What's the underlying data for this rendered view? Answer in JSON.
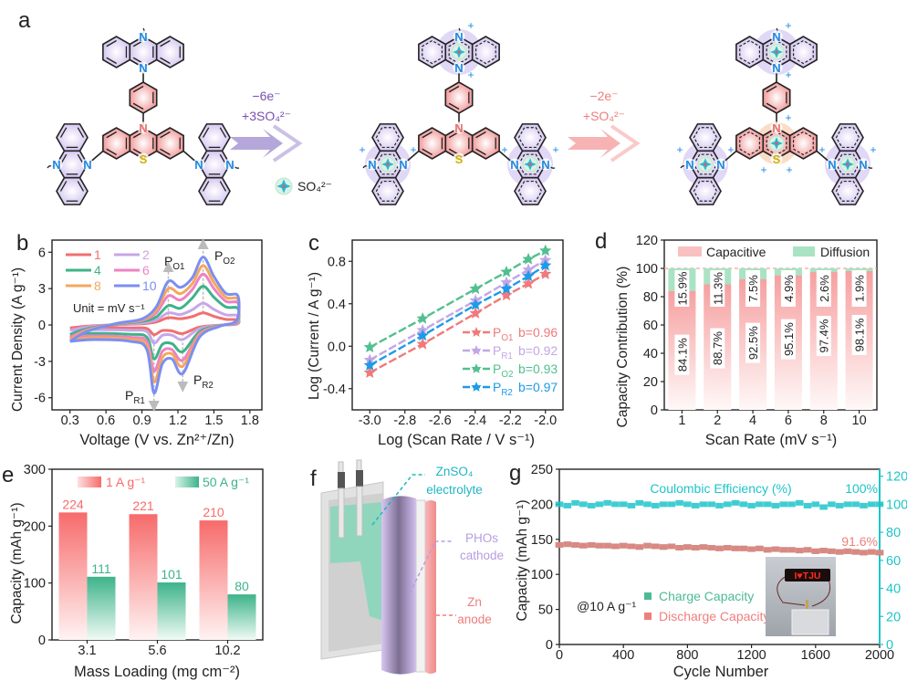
{
  "panel_labels": {
    "a": "a",
    "b": "b",
    "c": "c",
    "d": "d",
    "e": "e",
    "f": "f",
    "g": "g"
  },
  "scheme": {
    "step1": {
      "electrons": "−6e⁻",
      "anions": "+3SO₄²⁻",
      "color": "#7b4fae"
    },
    "step2": {
      "electrons": "−2e⁻",
      "anions": "+SO₄²⁻",
      "color": "#f07c7c"
    },
    "legend_label": "SO₄²⁻",
    "atoms": {
      "N": "N",
      "S": "S",
      "plus": "+"
    },
    "colors": {
      "phenazine": "#d4c8f0",
      "phenothiazine": "#f29a9a",
      "nitrogen": "#1e88e5",
      "sulfur": "#d2ae00",
      "anion": "#29b6d6"
    }
  },
  "device": {
    "electrolyte": [
      "ZnSO₄",
      "electrolyte"
    ],
    "cathode": [
      "PHOs",
      "cathode"
    ],
    "anode": [
      "Zn",
      "anode"
    ],
    "colors": {
      "electrolyte": "#1fb5c4",
      "cathode": "#b79ee0",
      "anode": "#f07c7c"
    }
  },
  "chart_data": [
    {
      "panel": "b",
      "type": "line",
      "xlabel": "Voltage (V vs. Zn²⁺/Zn)",
      "ylabel": "Current Density (A g⁻¹)",
      "xlim": [
        0.15,
        1.9
      ],
      "ylim": [
        -7,
        7
      ],
      "xticks": [
        "0.3",
        "0.6",
        "0.9",
        "1.2",
        "1.5",
        "1.8"
      ],
      "yticks": [
        "-6",
        "-3",
        "0",
        "3",
        "6"
      ],
      "annotation": "Unit = mV s⁻¹",
      "peaks": [
        {
          "main": "P",
          "sub": "O1",
          "voltage": 1.12
        },
        {
          "main": "P",
          "sub": "O2",
          "voltage": 1.41
        },
        {
          "main": "P",
          "sub": "R1",
          "voltage": 1.0
        },
        {
          "main": "P",
          "sub": "R2",
          "voltage": 1.24
        }
      ],
      "series": [
        {
          "name": "1",
          "color": "#f07070",
          "PO1": 0.6,
          "PO2": 1.0,
          "PR1": -0.8,
          "PR2": -0.7
        },
        {
          "name": "2",
          "color": "#c7a6e8",
          "PO1": 1.0,
          "PO2": 1.8,
          "PR1": -1.5,
          "PR2": -1.2
        },
        {
          "name": "4",
          "color": "#3db388",
          "PO1": 1.6,
          "PO2": 3.2,
          "PR1": -2.8,
          "PR2": -2.2
        },
        {
          "name": "6",
          "color": "#ee82c4",
          "PO1": 2.4,
          "PO2": 4.2,
          "PR1": -3.8,
          "PR2": -2.9
        },
        {
          "name": "8",
          "color": "#f5a75c",
          "PO1": 3.0,
          "PO2": 4.9,
          "PR1": -4.7,
          "PR2": -3.4
        },
        {
          "name": "10",
          "color": "#7b8ef2",
          "PO1": 3.6,
          "PO2": 5.6,
          "PR1": -5.6,
          "PR2": -4.0
        }
      ]
    },
    {
      "panel": "c",
      "type": "line",
      "xlabel": "Log (Scan Rate / V s⁻¹)",
      "ylabel": "Log (Current / A g⁻¹)",
      "xlim": [
        -3.1,
        -1.9
      ],
      "ylim": [
        -0.6,
        1.0
      ],
      "xticks": [
        "-3.0",
        "-2.8",
        "-2.6",
        "-2.4",
        "-2.2",
        "-2.0"
      ],
      "yticks": [
        "-0.4",
        "0.0",
        "0.4",
        "0.8"
      ],
      "x": [
        -3.0,
        -2.699,
        -2.398,
        -2.222,
        -2.097,
        -2.0
      ],
      "series": [
        {
          "main": "P",
          "sub": "O1",
          "b": "b=0.96",
          "color": "#f07a7a",
          "y": [
            -0.25,
            0.02,
            0.31,
            0.48,
            0.59,
            0.68
          ]
        },
        {
          "main": "P",
          "sub": "R1",
          "b": "b=0.92",
          "color": "#c3a6e6",
          "y": [
            -0.13,
            0.15,
            0.43,
            0.6,
            0.72,
            0.81
          ]
        },
        {
          "main": "P",
          "sub": "O2",
          "b": "b=0.93",
          "color": "#52bf8f",
          "y": [
            -0.01,
            0.26,
            0.54,
            0.7,
            0.82,
            0.9
          ]
        },
        {
          "main": "P",
          "sub": "R2",
          "b": "b=0.97",
          "color": "#1e9ae8",
          "y": [
            -0.18,
            0.1,
            0.39,
            0.54,
            0.66,
            0.76
          ]
        }
      ],
      "legend": "bottom-right"
    },
    {
      "panel": "d",
      "type": "bar",
      "xlabel": "Scan Rate (mV s⁻¹)",
      "ylabel": "Capacity Contribution (%)",
      "ylim": [
        0,
        120
      ],
      "yticks": [
        "0",
        "20",
        "40",
        "60",
        "80",
        "100",
        "120"
      ],
      "categories": [
        "1",
        "2",
        "4",
        "6",
        "8",
        "10"
      ],
      "series": [
        {
          "name": "Capacitive",
          "color": "#f6a0a0",
          "values": [
            84.1,
            88.7,
            92.5,
            95.1,
            97.4,
            98.1
          ],
          "labels": [
            "84.1%",
            "88.7%",
            "92.5%",
            "95.1%",
            "97.4%",
            "98.1%"
          ]
        },
        {
          "name": "Diffusion",
          "color": "#a9e3c3",
          "values": [
            15.9,
            11.3,
            7.5,
            4.9,
            2.6,
            1.9
          ],
          "labels": [
            "15.9%",
            "11.3%",
            "7.5%",
            "4.9%",
            "2.6%",
            "1.9%"
          ]
        }
      ],
      "stacked": true,
      "legend": "top"
    },
    {
      "panel": "e",
      "type": "bar",
      "xlabel": "Mass Loading (mg cm⁻²)",
      "ylabel": "Capacity (mAh g⁻¹)",
      "ylim": [
        0,
        300
      ],
      "yticks": [
        "0",
        "100",
        "200",
        "300"
      ],
      "categories": [
        "3.1",
        "5.6",
        "10.2"
      ],
      "series": [
        {
          "name": "1 A g⁻¹",
          "color": "#f76b6b",
          "values": [
            224,
            221,
            210
          ],
          "labels": [
            "224",
            "221",
            "210"
          ]
        },
        {
          "name": "50 A g⁻¹",
          "color": "#3db38a",
          "values": [
            111,
            101,
            80
          ],
          "labels": [
            "111",
            "101",
            "80"
          ]
        }
      ],
      "legend": "top"
    },
    {
      "panel": "g",
      "type": "scatter",
      "xlabel": "Cycle Number",
      "ylabel": "Capacity (mAh g⁻¹)",
      "xlim": [
        0,
        2000
      ],
      "ylim": [
        0,
        250
      ],
      "y2lim": [
        0,
        125
      ],
      "xticks": [
        "0",
        "400",
        "800",
        "1200",
        "1600",
        "2000"
      ],
      "yticks": [
        "0",
        "50",
        "100",
        "150",
        "200",
        "250"
      ],
      "y2ticks": [
        "0",
        "20",
        "40",
        "60",
        "80",
        "100",
        "120"
      ],
      "y2color": "#1fc4c9",
      "x": [
        0,
        50,
        100,
        150,
        200,
        250,
        300,
        350,
        400,
        450,
        500,
        550,
        600,
        650,
        700,
        750,
        800,
        850,
        900,
        950,
        1000,
        1050,
        1100,
        1150,
        1200,
        1250,
        1300,
        1350,
        1400,
        1450,
        1500,
        1550,
        1600,
        1650,
        1700,
        1750,
        1800,
        1850,
        1900,
        1950,
        2000
      ],
      "series": [
        {
          "name": "Charge Capacity",
          "color": "#4dba93",
          "axis": "left",
          "y": [
            142,
            143,
            142,
            141,
            142,
            141,
            141,
            140,
            141,
            140,
            139,
            141,
            140,
            139,
            140,
            138,
            139,
            138,
            139,
            138,
            137,
            138,
            137,
            137,
            136,
            137,
            135,
            136,
            135,
            135,
            134,
            135,
            133,
            134,
            133,
            132,
            133,
            132,
            131,
            132,
            131
          ]
        },
        {
          "name": "Discharge Capacity",
          "color": "#f07e7e",
          "axis": "left",
          "y": [
            142,
            143,
            142,
            141,
            142,
            141,
            141,
            140,
            141,
            140,
            139,
            141,
            140,
            139,
            140,
            138,
            139,
            138,
            139,
            138,
            137,
            138,
            137,
            137,
            136,
            137,
            135,
            136,
            135,
            135,
            134,
            135,
            133,
            134,
            133,
            132,
            133,
            132,
            131,
            132,
            131
          ]
        },
        {
          "name": "Coulombic Efficiency (%)",
          "color": "#1fc4c9",
          "axis": "right",
          "y": [
            100,
            99,
            101,
            100,
            99,
            100,
            101,
            100,
            100,
            99,
            101,
            100,
            99,
            100,
            100,
            101,
            100,
            99,
            100,
            100,
            99,
            100,
            101,
            100,
            99,
            100,
            100,
            99,
            100,
            100,
            101,
            99,
            100,
            98,
            100,
            99,
            100,
            100,
            99,
            100,
            100
          ]
        }
      ],
      "annotations": {
        "ce_label": "Coulombic Efficiency (%)",
        "ce_value": "100%",
        "retention": "91.6%",
        "rate": "@10 A g⁻¹"
      },
      "inset_photo_text": "I♥TJU",
      "legend": "bottom-center"
    }
  ]
}
